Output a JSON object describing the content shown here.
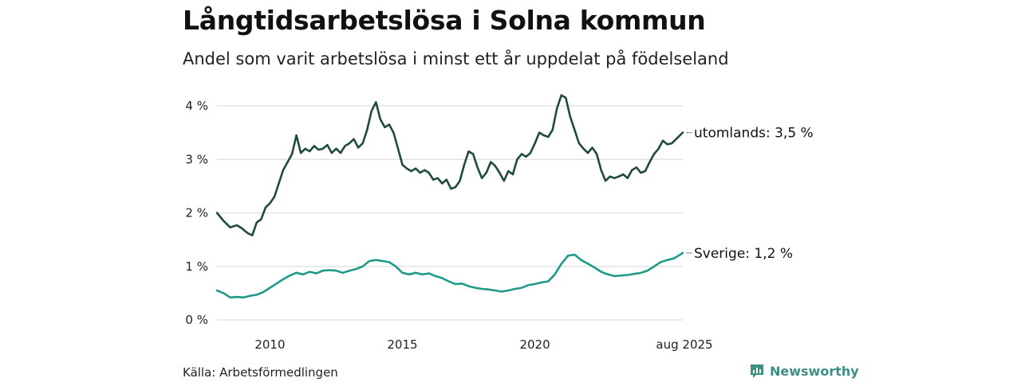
{
  "title": "Långtidsarbetslösa i Solna kommun",
  "subtitle": "Andel som varit arbetslösa i minst ett år uppdelat på födelseland",
  "source": "Källa: Arbetsförmedlingen",
  "brand": "Newsworthy",
  "colors": {
    "utomlands": "#1f4a40",
    "sverige": "#1f9a8a",
    "grid": "#e3e3e3",
    "brand": "#3d8f84"
  },
  "chart_data": {
    "type": "line",
    "title": "Långtidsarbetslösa i Solna kommun",
    "subtitle": "Andel som varit arbetslösa i minst ett år uppdelat på födelseland",
    "xlabel": "",
    "ylabel": "",
    "x_range": [
      "2008-01",
      "2025-08"
    ],
    "ylim": [
      0,
      4.3
    ],
    "y_ticks": [
      0,
      1,
      2,
      3,
      4
    ],
    "y_tick_labels": [
      "0 %",
      "1 %",
      "2 %",
      "3 %",
      "4 %"
    ],
    "x_ticks": [
      "2010-01",
      "2015-01",
      "2020-01",
      "2025-08"
    ],
    "x_tick_labels": [
      "2010",
      "2015",
      "2020",
      "aug 2025"
    ],
    "grid": true,
    "legend": "end-labels",
    "series": [
      {
        "name": "utomlands",
        "end_label": "utomlands: 3,5 %",
        "points": [
          [
            "2008-01",
            2.0
          ],
          [
            "2008-04",
            1.85
          ],
          [
            "2008-07",
            1.73
          ],
          [
            "2008-10",
            1.77
          ],
          [
            "2008-12",
            1.72
          ],
          [
            "2009-03",
            1.62
          ],
          [
            "2009-05",
            1.58
          ],
          [
            "2009-07",
            1.82
          ],
          [
            "2009-09",
            1.88
          ],
          [
            "2009-11",
            2.1
          ],
          [
            "2010-01",
            2.18
          ],
          [
            "2010-03",
            2.3
          ],
          [
            "2010-05",
            2.55
          ],
          [
            "2010-07",
            2.8
          ],
          [
            "2010-09",
            2.95
          ],
          [
            "2010-11",
            3.1
          ],
          [
            "2011-01",
            3.45
          ],
          [
            "2011-03",
            3.12
          ],
          [
            "2011-05",
            3.2
          ],
          [
            "2011-07",
            3.15
          ],
          [
            "2011-09",
            3.25
          ],
          [
            "2011-11",
            3.18
          ],
          [
            "2012-01",
            3.2
          ],
          [
            "2012-03",
            3.27
          ],
          [
            "2012-05",
            3.12
          ],
          [
            "2012-07",
            3.2
          ],
          [
            "2012-09",
            3.12
          ],
          [
            "2012-11",
            3.25
          ],
          [
            "2013-01",
            3.3
          ],
          [
            "2013-03",
            3.38
          ],
          [
            "2013-05",
            3.22
          ],
          [
            "2013-07",
            3.3
          ],
          [
            "2013-09",
            3.55
          ],
          [
            "2013-11",
            3.9
          ],
          [
            "2014-01",
            4.07
          ],
          [
            "2014-03",
            3.75
          ],
          [
            "2014-05",
            3.6
          ],
          [
            "2014-07",
            3.65
          ],
          [
            "2014-09",
            3.5
          ],
          [
            "2014-11",
            3.2
          ],
          [
            "2015-01",
            2.9
          ],
          [
            "2015-03",
            2.83
          ],
          [
            "2015-05",
            2.78
          ],
          [
            "2015-07",
            2.83
          ],
          [
            "2015-09",
            2.75
          ],
          [
            "2015-11",
            2.8
          ],
          [
            "2016-01",
            2.75
          ],
          [
            "2016-03",
            2.62
          ],
          [
            "2016-05",
            2.65
          ],
          [
            "2016-07",
            2.55
          ],
          [
            "2016-09",
            2.62
          ],
          [
            "2016-11",
            2.45
          ],
          [
            "2017-01",
            2.48
          ],
          [
            "2017-03",
            2.6
          ],
          [
            "2017-05",
            2.9
          ],
          [
            "2017-07",
            3.15
          ],
          [
            "2017-09",
            3.1
          ],
          [
            "2017-11",
            2.85
          ],
          [
            "2018-01",
            2.65
          ],
          [
            "2018-03",
            2.75
          ],
          [
            "2018-05",
            2.95
          ],
          [
            "2018-07",
            2.88
          ],
          [
            "2018-09",
            2.75
          ],
          [
            "2018-11",
            2.6
          ],
          [
            "2019-01",
            2.78
          ],
          [
            "2019-03",
            2.72
          ],
          [
            "2019-05",
            3.0
          ],
          [
            "2019-07",
            3.1
          ],
          [
            "2019-09",
            3.05
          ],
          [
            "2019-11",
            3.12
          ],
          [
            "2020-01",
            3.3
          ],
          [
            "2020-03",
            3.5
          ],
          [
            "2020-05",
            3.45
          ],
          [
            "2020-07",
            3.42
          ],
          [
            "2020-09",
            3.55
          ],
          [
            "2020-11",
            3.95
          ],
          [
            "2021-01",
            4.2
          ],
          [
            "2021-03",
            4.15
          ],
          [
            "2021-05",
            3.8
          ],
          [
            "2021-07",
            3.55
          ],
          [
            "2021-09",
            3.3
          ],
          [
            "2021-11",
            3.2
          ],
          [
            "2022-01",
            3.12
          ],
          [
            "2022-03",
            3.22
          ],
          [
            "2022-05",
            3.1
          ],
          [
            "2022-07",
            2.8
          ],
          [
            "2022-09",
            2.6
          ],
          [
            "2022-11",
            2.68
          ],
          [
            "2023-01",
            2.65
          ],
          [
            "2023-03",
            2.68
          ],
          [
            "2023-05",
            2.72
          ],
          [
            "2023-07",
            2.65
          ],
          [
            "2023-09",
            2.8
          ],
          [
            "2023-11",
            2.85
          ],
          [
            "2024-01",
            2.75
          ],
          [
            "2024-03",
            2.78
          ],
          [
            "2024-05",
            2.95
          ],
          [
            "2024-07",
            3.1
          ],
          [
            "2024-09",
            3.2
          ],
          [
            "2024-11",
            3.35
          ],
          [
            "2025-01",
            3.28
          ],
          [
            "2025-03",
            3.3
          ],
          [
            "2025-05",
            3.38
          ],
          [
            "2025-08",
            3.5
          ]
        ]
      },
      {
        "name": "Sverige",
        "end_label": "Sverige: 1,2 %",
        "points": [
          [
            "2008-01",
            0.55
          ],
          [
            "2008-04",
            0.5
          ],
          [
            "2008-07",
            0.42
          ],
          [
            "2008-10",
            0.43
          ],
          [
            "2009-01",
            0.42
          ],
          [
            "2009-04",
            0.45
          ],
          [
            "2009-07",
            0.47
          ],
          [
            "2009-10",
            0.52
          ],
          [
            "2010-01",
            0.6
          ],
          [
            "2010-04",
            0.68
          ],
          [
            "2010-07",
            0.76
          ],
          [
            "2010-10",
            0.83
          ],
          [
            "2011-01",
            0.88
          ],
          [
            "2011-04",
            0.85
          ],
          [
            "2011-07",
            0.9
          ],
          [
            "2011-10",
            0.87
          ],
          [
            "2012-01",
            0.92
          ],
          [
            "2012-04",
            0.93
          ],
          [
            "2012-07",
            0.92
          ],
          [
            "2012-10",
            0.88
          ],
          [
            "2013-01",
            0.92
          ],
          [
            "2013-04",
            0.95
          ],
          [
            "2013-07",
            1.0
          ],
          [
            "2013-10",
            1.1
          ],
          [
            "2014-01",
            1.12
          ],
          [
            "2014-04",
            1.1
          ],
          [
            "2014-07",
            1.08
          ],
          [
            "2014-10",
            1.0
          ],
          [
            "2015-01",
            0.88
          ],
          [
            "2015-04",
            0.85
          ],
          [
            "2015-07",
            0.88
          ],
          [
            "2015-10",
            0.85
          ],
          [
            "2016-01",
            0.87
          ],
          [
            "2016-04",
            0.82
          ],
          [
            "2016-07",
            0.78
          ],
          [
            "2016-10",
            0.72
          ],
          [
            "2017-01",
            0.67
          ],
          [
            "2017-04",
            0.68
          ],
          [
            "2017-07",
            0.63
          ],
          [
            "2017-10",
            0.6
          ],
          [
            "2018-01",
            0.58
          ],
          [
            "2018-04",
            0.57
          ],
          [
            "2018-07",
            0.55
          ],
          [
            "2018-10",
            0.53
          ],
          [
            "2019-01",
            0.55
          ],
          [
            "2019-04",
            0.58
          ],
          [
            "2019-07",
            0.6
          ],
          [
            "2019-10",
            0.65
          ],
          [
            "2020-01",
            0.67
          ],
          [
            "2020-04",
            0.7
          ],
          [
            "2020-07",
            0.72
          ],
          [
            "2020-10",
            0.85
          ],
          [
            "2021-01",
            1.05
          ],
          [
            "2021-04",
            1.2
          ],
          [
            "2021-07",
            1.22
          ],
          [
            "2021-10",
            1.12
          ],
          [
            "2022-01",
            1.05
          ],
          [
            "2022-04",
            0.98
          ],
          [
            "2022-07",
            0.9
          ],
          [
            "2022-10",
            0.85
          ],
          [
            "2023-01",
            0.82
          ],
          [
            "2023-04",
            0.83
          ],
          [
            "2023-07",
            0.84
          ],
          [
            "2023-10",
            0.86
          ],
          [
            "2024-01",
            0.88
          ],
          [
            "2024-04",
            0.92
          ],
          [
            "2024-07",
            1.0
          ],
          [
            "2024-10",
            1.08
          ],
          [
            "2025-01",
            1.12
          ],
          [
            "2025-04",
            1.15
          ],
          [
            "2025-08",
            1.25
          ]
        ]
      }
    ]
  }
}
